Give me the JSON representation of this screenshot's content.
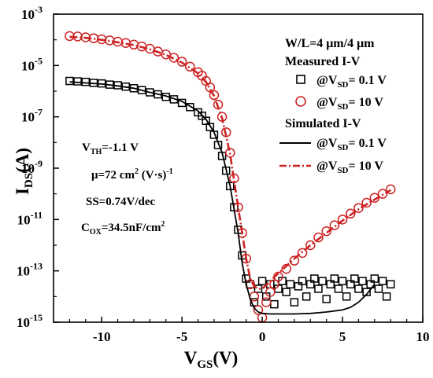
{
  "chart_data": {
    "type": "scatter",
    "xlabel": {
      "main": "V",
      "sub": "GS",
      "unit": "(V)"
    },
    "ylabel": {
      "main": "I",
      "sub": "DS",
      "unit": "(A)"
    },
    "xlim": [
      -13,
      10
    ],
    "ylim_exp": [
      -15,
      -3
    ],
    "y_scale": "log",
    "xticks": [
      -10,
      -5,
      0,
      5,
      10
    ],
    "xtick_labels": [
      "-10",
      "-5",
      "0",
      "5",
      "10"
    ],
    "yticks_exp": [
      -15,
      -13,
      -11,
      -9,
      -7,
      -5,
      -3
    ],
    "ytick_label_base": "10",
    "legend": {
      "placement": "top-right",
      "header": "W/L=4 μm/4 μm",
      "groups": [
        {
          "title": "Measured I-V",
          "entries": [
            {
              "marker": "square",
              "color": "#000000",
              "prefix": "@V",
              "sub": "SD",
              "suffix": "= 0.1 V"
            },
            {
              "marker": "circle",
              "color": "#cc2222",
              "prefix": "@V",
              "sub": "SD",
              "suffix": "= 10 V"
            }
          ]
        },
        {
          "title": "Simulated I-V",
          "entries": [
            {
              "marker": "line",
              "color": "#000000",
              "prefix": "@V",
              "sub": "SD",
              "suffix": "= 0.1 V"
            },
            {
              "marker": "dashdot",
              "color": "#cc2222",
              "prefix": "@V",
              "sub": "SD",
              "suffix": "= 10 V"
            }
          ]
        }
      ]
    },
    "annotations": [
      {
        "main": "V",
        "sub": "TH",
        "rest": "=-1.1 V"
      },
      {
        "main": "μ=72 cm",
        "sup": "2",
        "rest": " (V·s)",
        "sup2": "-1"
      },
      {
        "main": "SS=0.74V/dec"
      },
      {
        "main": "C",
        "sub": "OX",
        "rest": "=34.5nF/cm",
        "sup": "2"
      }
    ],
    "series": [
      {
        "name": "Measured I-V @VSD = 0.1 V",
        "style": "square",
        "color": "#000000",
        "x": [
          -12,
          -11.5,
          -11,
          -10.5,
          -10,
          -9.5,
          -9,
          -8.5,
          -8,
          -7.5,
          -7,
          -6.5,
          -6,
          -5.5,
          -5,
          -4.5,
          -4,
          -3.75,
          -3.5,
          -3.25,
          -3,
          -2.75,
          -2.5,
          -2.25,
          -2,
          -1.75,
          -1.5,
          -1.25,
          -1,
          -0.75,
          -0.5,
          -0.25,
          0,
          0.25,
          0.5,
          0.75,
          1,
          1.25,
          1.5,
          1.75,
          2,
          2.25,
          2.5,
          2.75,
          3,
          3.25,
          3.5,
          3.75,
          4,
          4.25,
          4.5,
          4.75,
          5,
          5.25,
          5.5,
          5.75,
          6,
          6.25,
          6.5,
          6.75,
          7,
          7.25,
          7.5,
          7.75,
          8
        ],
        "y": [
          2.5e-06,
          2.4e-06,
          2.3e-06,
          2.1e-06,
          2e-06,
          1.8e-06,
          1.7e-06,
          1.5e-06,
          1.3e-06,
          1.1e-06,
          9e-07,
          7.5e-07,
          6e-07,
          4.8e-07,
          3.5e-07,
          2.4e-07,
          1.5e-07,
          1.1e-07,
          7e-08,
          4e-08,
          2e-08,
          8e-09,
          3e-09,
          8e-10,
          2e-10,
          3e-11,
          4e-12,
          4e-13,
          5e-14,
          3e-14,
          6e-15,
          2e-14,
          4e-14,
          1e-14,
          3e-14,
          5e-15,
          2e-14,
          4e-14,
          1.5e-14,
          3e-14,
          6e-15,
          2.5e-14,
          4e-14,
          1e-14,
          3e-14,
          5e-14,
          2e-14,
          4e-14,
          8e-15,
          3e-14,
          5e-14,
          2e-14,
          4e-14,
          1e-14,
          3e-14,
          5e-14,
          2e-14,
          4e-14,
          1.5e-14,
          3e-14,
          5e-14,
          2e-14,
          4e-14,
          1e-14,
          3e-14
        ]
      },
      {
        "name": "Measured I-V @VSD = 10 V",
        "style": "circle",
        "color": "#cc2222",
        "x": [
          -12,
          -11.5,
          -11,
          -10.5,
          -10,
          -9.5,
          -9,
          -8.5,
          -8,
          -7.5,
          -7,
          -6.5,
          -6,
          -5.5,
          -5,
          -4.5,
          -4,
          -3.75,
          -3.5,
          -3.25,
          -3,
          -2.75,
          -2.5,
          -2.25,
          -2,
          -1.75,
          -1.5,
          -1.25,
          -1,
          -0.75,
          -0.5,
          -0.25,
          0,
          0.25,
          0.5,
          0.75,
          1,
          1.5,
          2,
          2.5,
          3,
          3.5,
          4,
          4.5,
          5,
          5.5,
          6,
          6.5,
          7,
          7.5,
          8
        ],
        "y": [
          0.00014,
          0.000135,
          0.000125,
          0.000115,
          0.000105,
          9.5e-05,
          8.5e-05,
          7.5e-05,
          6.5e-05,
          5.5e-05,
          4.5e-05,
          3.5e-05,
          2.7e-05,
          2e-05,
          1.4e-05,
          9e-06,
          5.5e-06,
          4e-06,
          2.5e-06,
          1.4e-06,
          7e-07,
          3e-07,
          1e-07,
          2.5e-08,
          4e-09,
          4e-10,
          3e-11,
          3e-12,
          3e-13,
          3e-14,
          1e-14,
          3e-15,
          1.5e-15,
          6e-15,
          1.5e-14,
          3e-14,
          6e-14,
          1.2e-13,
          2.5e-13,
          5e-13,
          1e-12,
          2e-12,
          3.5e-12,
          6e-12,
          1e-11,
          1.7e-11,
          2.8e-11,
          4.5e-11,
          7e-11,
          1e-10,
          1.5e-10
        ]
      },
      {
        "name": "Simulated I-V @VSD = 0.1 V",
        "style": "line",
        "color": "#000000",
        "x": [
          -12,
          -11,
          -10,
          -9,
          -8,
          -7,
          -6,
          -5,
          -4,
          -3.5,
          -3,
          -2.5,
          -2,
          -1.5,
          -1.25,
          -1,
          -0.75,
          -0.5,
          -0.25,
          0,
          0.5,
          1,
          2,
          3,
          4,
          5,
          5.5,
          6,
          6.5,
          7
        ],
        "y": [
          2.3e-06,
          2.1e-06,
          1.9e-06,
          1.6e-06,
          1.3e-06,
          9e-07,
          6.5e-07,
          4e-07,
          1.7e-07,
          8e-08,
          2.5e-08,
          4e-09,
          2e-10,
          3e-12,
          2e-13,
          3e-14,
          8e-15,
          3.5e-15,
          2.5e-15,
          2.2e-15,
          2.1e-15,
          2.1e-15,
          2.1e-15,
          2.2e-15,
          2.5e-15,
          3e-15,
          3.8e-15,
          6e-15,
          1.2e-14,
          3e-14
        ]
      },
      {
        "name": "Simulated I-V @VSD = 10 V",
        "style": "dashdot",
        "color": "#cc2222",
        "x": [
          -12,
          -11,
          -10,
          -9,
          -8,
          -7,
          -6,
          -5,
          -4,
          -3.5,
          -3,
          -2.5,
          -2,
          -1.5,
          -1.25,
          -1,
          -0.75,
          -0.5,
          -0.25,
          0,
          0.5,
          1,
          2,
          3,
          4,
          5,
          6,
          7,
          8
        ],
        "y": [
          0.00013,
          0.00012,
          0.0001,
          8e-05,
          6.2e-05,
          4.3e-05,
          2.6e-05,
          1.3e-05,
          5e-06,
          2.3e-06,
          6.5e-07,
          9e-08,
          3.5e-09,
          3e-11,
          3e-12,
          3e-13,
          5e-14,
          2.5e-14,
          2e-14,
          2e-14,
          4e-14,
          8e-14,
          3e-13,
          1e-12,
          3e-12,
          9e-12,
          2.5e-11,
          6e-11,
          1.4e-10
        ]
      }
    ]
  }
}
